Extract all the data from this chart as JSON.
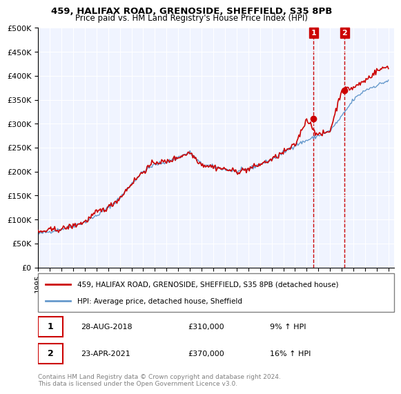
{
  "title1": "459, HALIFAX ROAD, GRENOSIDE, SHEFFIELD, S35 8PB",
  "title2": "Price paid vs. HM Land Registry's House Price Index (HPI)",
  "legend_line1": "459, HALIFAX ROAD, GRENOSIDE, SHEFFIELD, S35 8PB (detached house)",
  "legend_line2": "HPI: Average price, detached house, Sheffield",
  "annotation1_label": "1",
  "annotation1_date": "28-AUG-2018",
  "annotation1_price": "£310,000",
  "annotation1_hpi": "9% ↑ HPI",
  "annotation2_label": "2",
  "annotation2_date": "23-APR-2021",
  "annotation2_price": "£370,000",
  "annotation2_hpi": "16% ↑ HPI",
  "footer": "Contains HM Land Registry data © Crown copyright and database right 2024.\nThis data is licensed under the Open Government Licence v3.0.",
  "property_color": "#cc0000",
  "hpi_color": "#6699cc",
  "annotation_box_color": "#cc0000",
  "background_color": "#ffffff",
  "plot_bg_color": "#f0f4ff",
  "ylim": [
    0,
    500000
  ],
  "ytick_step": 50000,
  "start_year": 1995,
  "end_year": 2025
}
